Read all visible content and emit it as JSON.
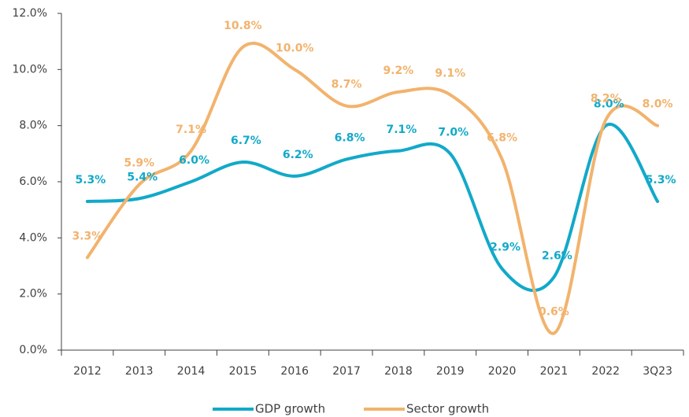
{
  "chart_data": {
    "type": "line",
    "categories": [
      "2012",
      "2013",
      "2014",
      "2015",
      "2016",
      "2017",
      "2018",
      "2019",
      "2020",
      "2021",
      "2022",
      "3Q23"
    ],
    "series": [
      {
        "name": "GDP growth",
        "color": "#12a9c9",
        "values": [
          5.3,
          5.4,
          6.0,
          6.7,
          6.2,
          6.8,
          7.1,
          7.0,
          2.9,
          2.6,
          8.0,
          5.3
        ],
        "value_labels": [
          "5.3%",
          "5.4%",
          "6.0%",
          "6.7%",
          "6.2%",
          "6.8%",
          "7.1%",
          "7.0%",
          "2.9%",
          "2.6%",
          "8.0%",
          "5.3%"
        ]
      },
      {
        "name": "Sector growth",
        "color": "#f2b36d",
        "values": [
          3.3,
          5.9,
          7.1,
          10.8,
          10.0,
          8.7,
          9.2,
          9.1,
          6.8,
          0.6,
          8.2,
          8.0
        ],
        "value_labels": [
          "3.3%",
          "5.9%",
          "7.1%",
          "10.8%",
          "10.0%",
          "8.7%",
          "9.2%",
          "9.1%",
          "6.8%",
          "0.6%",
          "8.2%",
          "8.0%"
        ]
      }
    ],
    "ylim": [
      0,
      12
    ],
    "yticks": [
      {
        "value": 0,
        "label": "0.0%"
      },
      {
        "value": 2,
        "label": "2.0%"
      },
      {
        "value": 4,
        "label": "4.0%"
      },
      {
        "value": 6,
        "label": "6.0%"
      },
      {
        "value": 8,
        "label": "8.0%"
      },
      {
        "value": 10,
        "label": "10.0%"
      },
      {
        "value": 12,
        "label": "12.0%"
      }
    ],
    "grid": false,
    "legend": "bottom"
  }
}
